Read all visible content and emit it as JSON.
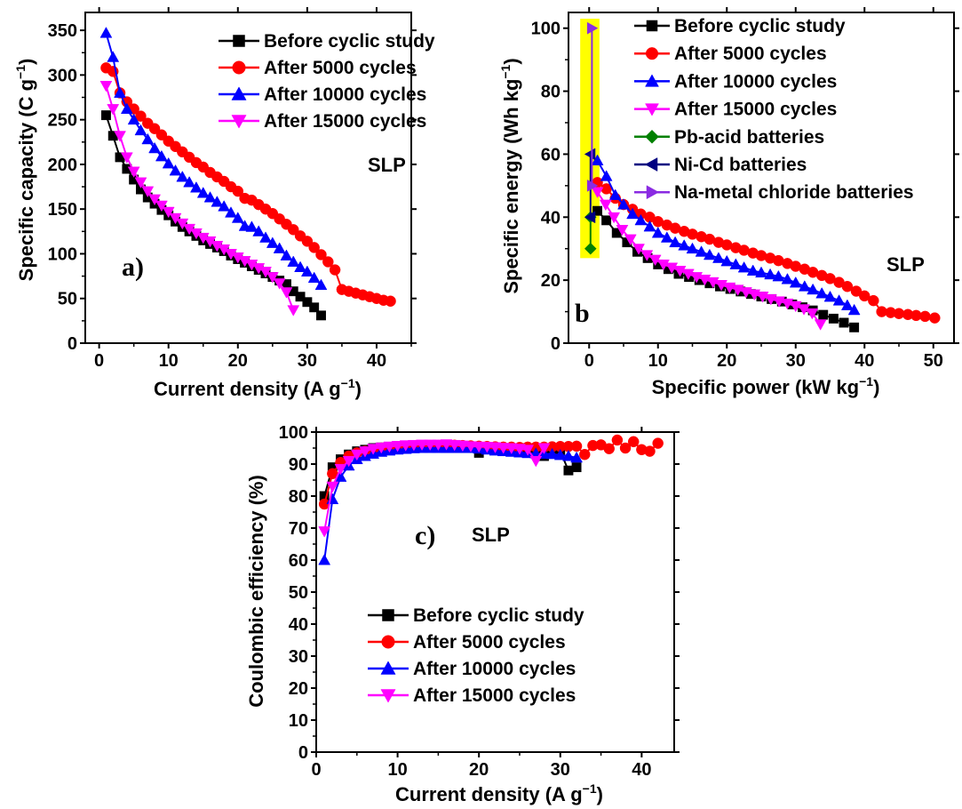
{
  "chart_data": [
    {
      "type": "line",
      "panel_label": "a)",
      "annotation": "SLP",
      "xlabel": "Current density (A g",
      "xlabel_sup": "−1",
      "xlabel_close": ")",
      "ylabel": "Specific capacity (C g",
      "ylabel_sup": "−1",
      "ylabel_close": ")",
      "xlim": [
        -2,
        45
      ],
      "ylim": [
        0,
        370
      ],
      "xticks": [
        0,
        10,
        20,
        30,
        40
      ],
      "yticks": [
        0,
        50,
        100,
        150,
        200,
        250,
        300,
        350
      ],
      "legend_position": "top-right",
      "series": [
        {
          "name": "Before cyclic study",
          "color": "#000000",
          "marker": "square",
          "x": [
            1,
            2,
            3,
            4,
            5,
            6,
            7,
            8,
            9,
            10,
            11,
            12,
            13,
            14,
            15,
            16,
            17,
            18,
            19,
            20,
            21,
            22,
            23,
            24,
            25,
            26,
            27,
            28,
            29,
            30,
            31,
            32
          ],
          "y": [
            255,
            232,
            208,
            195,
            183,
            172,
            163,
            156,
            149,
            143,
            136,
            130,
            125,
            120,
            115,
            111,
            107,
            103,
            98,
            94,
            90,
            86,
            82,
            78,
            74,
            70,
            66,
            58,
            52,
            46,
            40,
            31
          ]
        },
        {
          "name": "After 5000 cycles",
          "color": "#ff0000",
          "marker": "circle",
          "x": [
            1,
            2,
            3,
            4,
            5,
            6,
            7,
            8,
            9,
            10,
            11,
            12,
            13,
            14,
            15,
            16,
            17,
            18,
            19,
            20,
            21,
            22,
            23,
            24,
            25,
            26,
            27,
            28,
            29,
            30,
            31,
            32,
            33,
            34,
            35,
            36,
            37,
            38,
            39,
            40,
            41,
            42
          ],
          "y": [
            308,
            304,
            280,
            270,
            262,
            254,
            246,
            240,
            233,
            226,
            220,
            214,
            208,
            202,
            197,
            191,
            186,
            181,
            175,
            170,
            162,
            160,
            155,
            150,
            145,
            139,
            133,
            127,
            120,
            114,
            107,
            99,
            91,
            82,
            60,
            58,
            56,
            54,
            52,
            50,
            48,
            47
          ]
        },
        {
          "name": "After 10000 cycles",
          "color": "#0000ff",
          "marker": "triangle-up",
          "x": [
            1,
            2,
            3,
            4,
            5,
            6,
            7,
            8,
            9,
            10,
            11,
            12,
            13,
            14,
            15,
            16,
            17,
            18,
            19,
            20,
            21,
            22,
            23,
            24,
            25,
            26,
            27,
            28,
            29,
            30,
            31,
            32
          ],
          "y": [
            347,
            320,
            280,
            262,
            250,
            238,
            228,
            218,
            209,
            201,
            193,
            186,
            180,
            174,
            168,
            163,
            158,
            153,
            146,
            140,
            131,
            130,
            125,
            118,
            112,
            106,
            98,
            91,
            85,
            80,
            73,
            65
          ]
        },
        {
          "name": "After 15000 cycles",
          "color": "#ff00ff",
          "marker": "triangle-down",
          "x": [
            1,
            2,
            3,
            4,
            5,
            6,
            7,
            8,
            9,
            10,
            11,
            12,
            13,
            14,
            15,
            16,
            17,
            18,
            19,
            20,
            21,
            22,
            23,
            24,
            25,
            26,
            27,
            28
          ],
          "y": [
            288,
            262,
            232,
            208,
            192,
            180,
            170,
            161,
            154,
            147,
            140,
            134,
            128,
            123,
            118,
            114,
            109,
            105,
            100,
            96,
            92,
            88,
            84,
            80,
            74,
            67,
            57,
            37
          ]
        }
      ]
    },
    {
      "type": "line",
      "panel_label": "b",
      "annotation": "SLP",
      "xlabel": "Specific power (kW kg",
      "xlabel_sup": "−1",
      "xlabel_close": ")",
      "ylabel": "Specific energy (Wh kg",
      "ylabel_sup": "−1",
      "ylabel_close": ")",
      "xlim": [
        -3,
        53
      ],
      "ylim": [
        0,
        105
      ],
      "xticks": [
        0,
        10,
        20,
        30,
        40,
        50
      ],
      "yticks": [
        0,
        20,
        40,
        60,
        80,
        100
      ],
      "highlight_color": "#ffff00",
      "highlight_x": [
        -1.3,
        1.5
      ],
      "highlight_y": [
        27,
        103
      ],
      "legend_position": "top-right",
      "series": [
        {
          "name": "Before cyclic study",
          "color": "#000000",
          "marker": "square",
          "x": [
            1.2,
            2.5,
            4.0,
            5.5,
            7.0,
            8.5,
            10,
            11.5,
            13,
            14.5,
            16,
            17.5,
            19,
            20.5,
            22,
            23.5,
            25,
            26.5,
            28,
            29.5,
            31,
            32.5,
            34,
            35.5,
            37,
            38.5
          ],
          "y": [
            42,
            39,
            35,
            32,
            29,
            27,
            25,
            23.5,
            22,
            21,
            20,
            19,
            18,
            17.2,
            16.4,
            15.6,
            14.8,
            14,
            13.2,
            12.3,
            11.4,
            10.4,
            9,
            7.8,
            6.5,
            5
          ]
        },
        {
          "name": "After 5000 cycles",
          "color": "#ff0000",
          "marker": "circle",
          "x": [
            1.2,
            2.5,
            3.8,
            5.0,
            6.3,
            7.5,
            8.8,
            10,
            11.3,
            12.5,
            13.8,
            15,
            16.3,
            17.5,
            18.8,
            20,
            21.3,
            22.5,
            23.8,
            25,
            26.3,
            27.5,
            28.8,
            30,
            31.3,
            32.5,
            33.8,
            35,
            36.3,
            37.5,
            38.8,
            40,
            41.3,
            42.5,
            43.8,
            45,
            46.3,
            47.5,
            48.8,
            50.2
          ],
          "y": [
            51,
            49,
            46,
            44,
            42.5,
            41,
            40,
            38.6,
            37.5,
            36.5,
            35.5,
            34.6,
            33.8,
            33,
            32,
            31.2,
            30.3,
            29.5,
            28.6,
            27.8,
            27,
            26.2,
            25.3,
            24.4,
            23.5,
            22.5,
            21.5,
            20.5,
            19.3,
            18,
            16.5,
            15,
            13.5,
            10,
            9.7,
            9.4,
            9.1,
            8.8,
            8.5,
            8
          ]
        },
        {
          "name": "After 10000 cycles",
          "color": "#0000ff",
          "marker": "triangle-up",
          "x": [
            1.2,
            2.5,
            3.8,
            5.0,
            6.3,
            7.5,
            8.8,
            10,
            11.3,
            12.5,
            13.8,
            15,
            16.3,
            17.5,
            18.8,
            20,
            21.3,
            22.5,
            23.8,
            25,
            26.3,
            27.5,
            28.8,
            30,
            31.3,
            32.5,
            33.8,
            35,
            36.3,
            37.5,
            38.5
          ],
          "y": [
            58,
            53,
            47,
            44,
            41,
            39,
            37,
            35,
            33.5,
            32,
            31,
            30,
            29,
            28,
            27,
            26,
            25,
            24,
            23,
            22.4,
            21.8,
            21.2,
            20.3,
            19.2,
            18,
            17,
            15.8,
            14.7,
            13.5,
            12,
            10.5
          ]
        },
        {
          "name": "After 15000 cycles",
          "color": "#ff00ff",
          "marker": "triangle-down",
          "x": [
            1.2,
            2.4,
            3.6,
            4.8,
            6.0,
            7.2,
            8.4,
            9.6,
            10.8,
            12,
            13.2,
            14.4,
            15.6,
            16.8,
            18,
            19.2,
            20.4,
            21.6,
            22.8,
            24,
            25.2,
            26.4,
            27.6,
            28.8,
            30,
            31.2,
            32.4,
            33.6
          ],
          "y": [
            48,
            44,
            40,
            36,
            33,
            30,
            28,
            26.5,
            25,
            24,
            23,
            22,
            21,
            20.2,
            19.4,
            18.5,
            17.7,
            17,
            16.2,
            15.5,
            14.8,
            14,
            13.3,
            12.6,
            11.8,
            10.8,
            9.5,
            6
          ]
        },
        {
          "name": "Pb-acid batteries",
          "color": "#008000",
          "marker": "diamond",
          "x": [
            0.2,
            0.2
          ],
          "y": [
            30,
            40
          ]
        },
        {
          "name": "Ni-Cd batteries",
          "color": "#000080",
          "marker": "triangle-left",
          "x": [
            0.2,
            0.2
          ],
          "y": [
            40,
            60
          ]
        },
        {
          "name": "Na-metal chloride batteries",
          "color": "#8a2be2",
          "marker": "triangle-right",
          "x": [
            0.4,
            0.4
          ],
          "y": [
            50,
            100
          ]
        }
      ]
    },
    {
      "type": "line",
      "panel_label": "c)",
      "annotation": "SLP",
      "xlabel": "Current density (A g",
      "xlabel_sup": "−1",
      "xlabel_close": ")",
      "ylabel": "Coulombic efficiency (%)",
      "xlim": [
        0,
        44
      ],
      "ylim": [
        0,
        100
      ],
      "xticks": [
        0,
        10,
        20,
        30,
        40
      ],
      "yticks": [
        0,
        10,
        20,
        30,
        40,
        50,
        60,
        70,
        80,
        90,
        100
      ],
      "legend_position": "lower-center",
      "series": [
        {
          "name": "Before cyclic study",
          "color": "#000000",
          "marker": "square",
          "x": [
            1,
            2,
            3,
            4,
            5,
            6,
            7,
            8,
            9,
            10,
            11,
            12,
            13,
            14,
            15,
            16,
            17,
            18,
            19,
            20,
            21,
            22,
            23,
            24,
            25,
            26,
            27,
            28,
            29,
            30,
            31,
            32
          ],
          "y": [
            80,
            89,
            91.5,
            93,
            94,
            94.5,
            95,
            95.2,
            95.4,
            95.5,
            95.6,
            95.7,
            95.8,
            95.8,
            95.8,
            95,
            95,
            95,
            95,
            93.5,
            95,
            95,
            95,
            95,
            95,
            93.5,
            93.5,
            92.5,
            93.5,
            94,
            88,
            89
          ]
        },
        {
          "name": "After 5000 cycles",
          "color": "#ff0000",
          "marker": "circle",
          "x": [
            1,
            2,
            3,
            4,
            5,
            6,
            7,
            8,
            9,
            10,
            11,
            12,
            13,
            14,
            15,
            16,
            17,
            18,
            19,
            20,
            21,
            22,
            23,
            24,
            25,
            26,
            27,
            28,
            29,
            30,
            31,
            32,
            33,
            34,
            35,
            36,
            37,
            38,
            39,
            40,
            41,
            42
          ],
          "y": [
            77.5,
            87,
            90.5,
            92.5,
            93.5,
            94,
            94.5,
            95,
            95.2,
            95.4,
            95.5,
            95.6,
            95.7,
            95.8,
            95.8,
            95.8,
            95.9,
            95.8,
            95.7,
            95.6,
            95.5,
            95.4,
            95.3,
            95.3,
            95.2,
            95.3,
            95.3,
            95.3,
            95.4,
            95.5,
            95.5,
            95.6,
            93,
            95.8,
            96,
            94.8,
            97.5,
            95,
            97,
            94.5,
            94,
            96.5
          ]
        },
        {
          "name": "After 10000 cycles",
          "color": "#0000ff",
          "marker": "triangle-up",
          "x": [
            1,
            2,
            3,
            4,
            5,
            6,
            7,
            8,
            9,
            10,
            11,
            12,
            13,
            14,
            15,
            16,
            17,
            18,
            19,
            20,
            21,
            22,
            23,
            24,
            25,
            26,
            27,
            28,
            29,
            30,
            31,
            32
          ],
          "y": [
            60,
            79,
            86,
            89.5,
            91.5,
            92.5,
            93.2,
            93.8,
            94.2,
            94.5,
            94.7,
            94.9,
            95,
            95,
            95,
            95,
            95,
            95,
            95,
            94.8,
            94.5,
            94.2,
            94,
            93.8,
            93.6,
            93.4,
            93.3,
            93.2,
            93.1,
            92.8,
            92.5,
            92
          ]
        },
        {
          "name": "After 15000 cycles",
          "color": "#ff00ff",
          "marker": "triangle-down",
          "x": [
            1,
            2,
            3,
            4,
            5,
            6,
            7,
            8,
            9,
            10,
            11,
            12,
            13,
            14,
            15,
            16,
            17,
            18,
            19,
            20,
            21,
            22,
            23,
            24,
            25,
            26,
            27,
            28
          ],
          "y": [
            69,
            83,
            88.5,
            91,
            93,
            94,
            94.8,
            95.2,
            95.5,
            95.7,
            95.9,
            96,
            96.1,
            96.1,
            96.1,
            96.2,
            96,
            95.8,
            95.6,
            95.5,
            95.4,
            95.3,
            95.1,
            95,
            94.8,
            94.5,
            91,
            95
          ]
        }
      ]
    }
  ]
}
